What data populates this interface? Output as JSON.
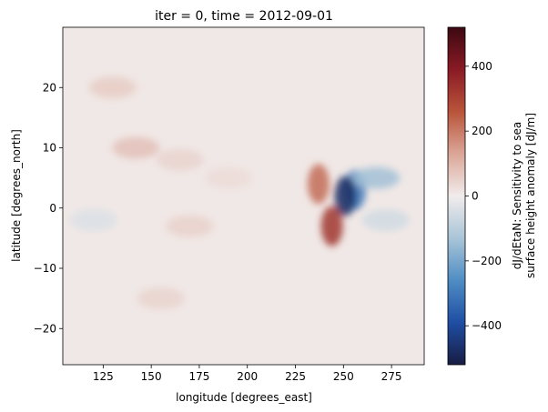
{
  "chart_data": {
    "type": "heatmap",
    "title": "iter = 0, time = 2012-09-01",
    "xlabel": "longitude [degrees_east]",
    "ylabel": "latitude [degrees_north]",
    "xlim": [
      104,
      292
    ],
    "ylim": [
      -26,
      30
    ],
    "xticks": [
      125,
      150,
      175,
      200,
      225,
      250,
      275
    ],
    "yticks": [
      -20,
      -10,
      0,
      10,
      20
    ],
    "colorbar": {
      "label_line1": "dJ/dEtaN: Sensitivity to sea",
      "label_line2": "surface height anomaly [dJ/m]",
      "vmin": -520,
      "vmax": 520,
      "ticks": [
        -400,
        -200,
        0,
        200,
        400
      ],
      "colormap": "balance",
      "colors": [
        "#181c43",
        "#1f4ea3",
        "#4f8dc4",
        "#a9c5d8",
        "#f1ecec",
        "#dba697",
        "#b9543b",
        "#8a1a24",
        "#3c0912"
      ]
    },
    "background_color": "#f0e8e6",
    "features": [
      {
        "lon": 130,
        "lat": 20,
        "value": 60
      },
      {
        "lon": 142,
        "lat": 10,
        "value": 80
      },
      {
        "lon": 165,
        "lat": 8,
        "value": 45
      },
      {
        "lon": 190,
        "lat": 5,
        "value": 30
      },
      {
        "lon": 170,
        "lat": -3,
        "value": 50
      },
      {
        "lon": 155,
        "lat": -15,
        "value": 45
      },
      {
        "lon": 120,
        "lat": -2,
        "value": -40
      },
      {
        "lon": 237,
        "lat": 4,
        "value": 220
      },
      {
        "lon": 244,
        "lat": -3,
        "value": 330
      },
      {
        "lon": 256,
        "lat": 3,
        "value": -300
      },
      {
        "lon": 251,
        "lat": 2,
        "value": -480
      },
      {
        "lon": 267,
        "lat": 5,
        "value": -140
      },
      {
        "lon": 272,
        "lat": -2,
        "value": -60
      }
    ]
  }
}
